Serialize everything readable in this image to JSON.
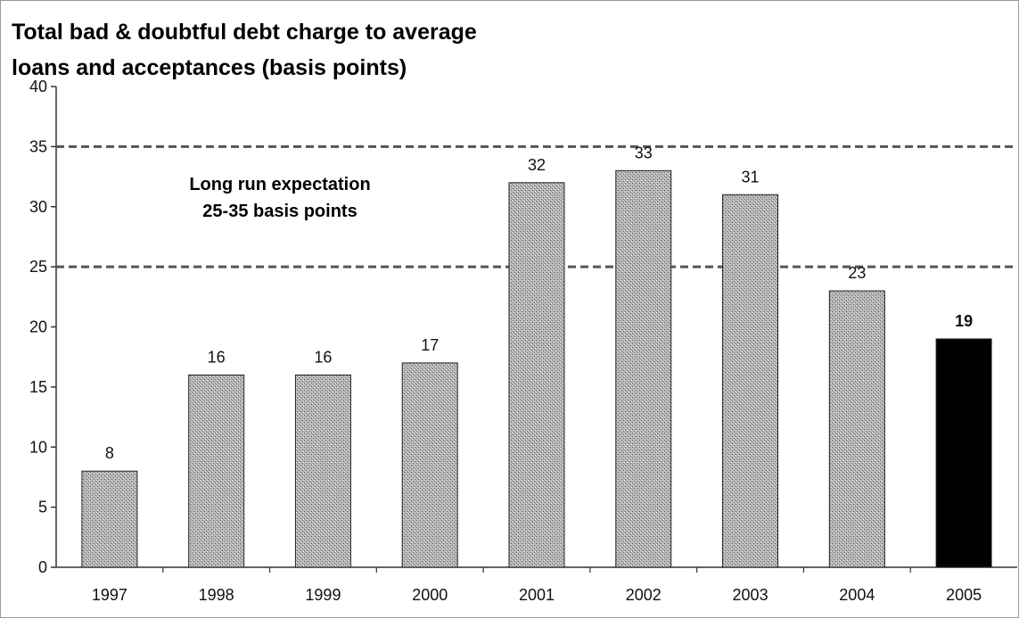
{
  "chart_data": {
    "type": "bar",
    "title_lines": [
      "Total bad & doubtful debt charge to average",
      "loans and acceptances (basis points)"
    ],
    "xlabel": "",
    "ylabel": "",
    "categories": [
      "1997",
      "1998",
      "1999",
      "2000",
      "2001",
      "2002",
      "2003",
      "2004",
      "2005"
    ],
    "values": [
      8,
      16,
      16,
      17,
      32,
      33,
      31,
      23,
      19
    ],
    "ylim": [
      0,
      40
    ],
    "yticks": [
      0,
      5,
      10,
      15,
      20,
      25,
      30,
      35,
      40
    ],
    "highlight_category": "2005",
    "colors": {
      "bar": "#a8a8a8",
      "highlight": "#000000",
      "reference_line": "#555555"
    },
    "reference_lines": [
      25,
      35
    ],
    "annotation": [
      "Long run expectation",
      "25-35 basis points"
    ],
    "grid": false,
    "legend": "none"
  }
}
